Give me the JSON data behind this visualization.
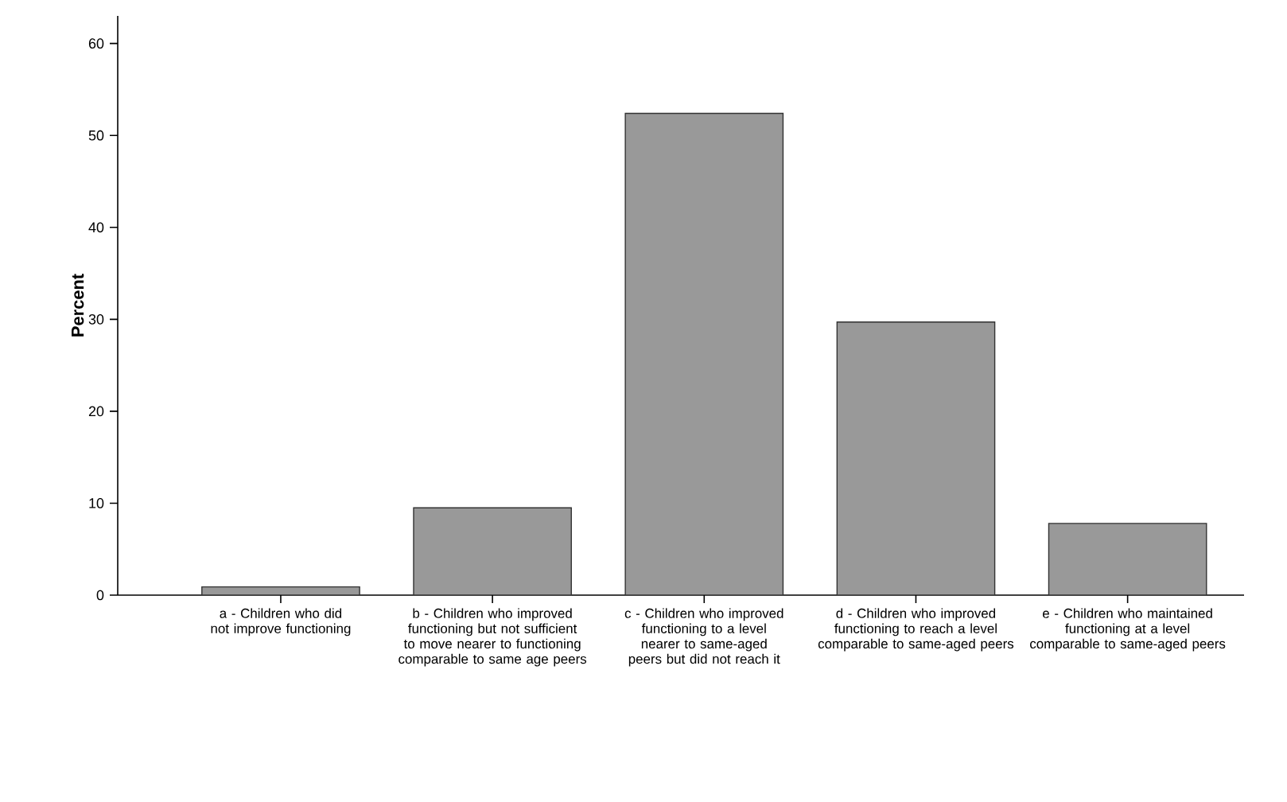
{
  "chart_data": {
    "type": "bar",
    "ylabel": "Percent",
    "categories": [
      "a - Children who did not improve functioning",
      "b - Children who improved functioning but not sufficient to move nearer to functioning comparable to same age peers",
      "c - Children who improved functioning to a level nearer to same-aged peers but did not reach it",
      "d - Children who improved functioning to reach a level comparable to same-aged peers",
      "e - Children who maintained functioning at a level comparable to same-aged peers"
    ],
    "values": [
      0.9,
      9.5,
      52.4,
      29.7,
      7.8
    ],
    "color": "#999999",
    "ylim": [
      0,
      63
    ],
    "yticks": [
      0,
      10,
      20,
      30,
      40,
      50,
      60
    ],
    "grid": false
  }
}
